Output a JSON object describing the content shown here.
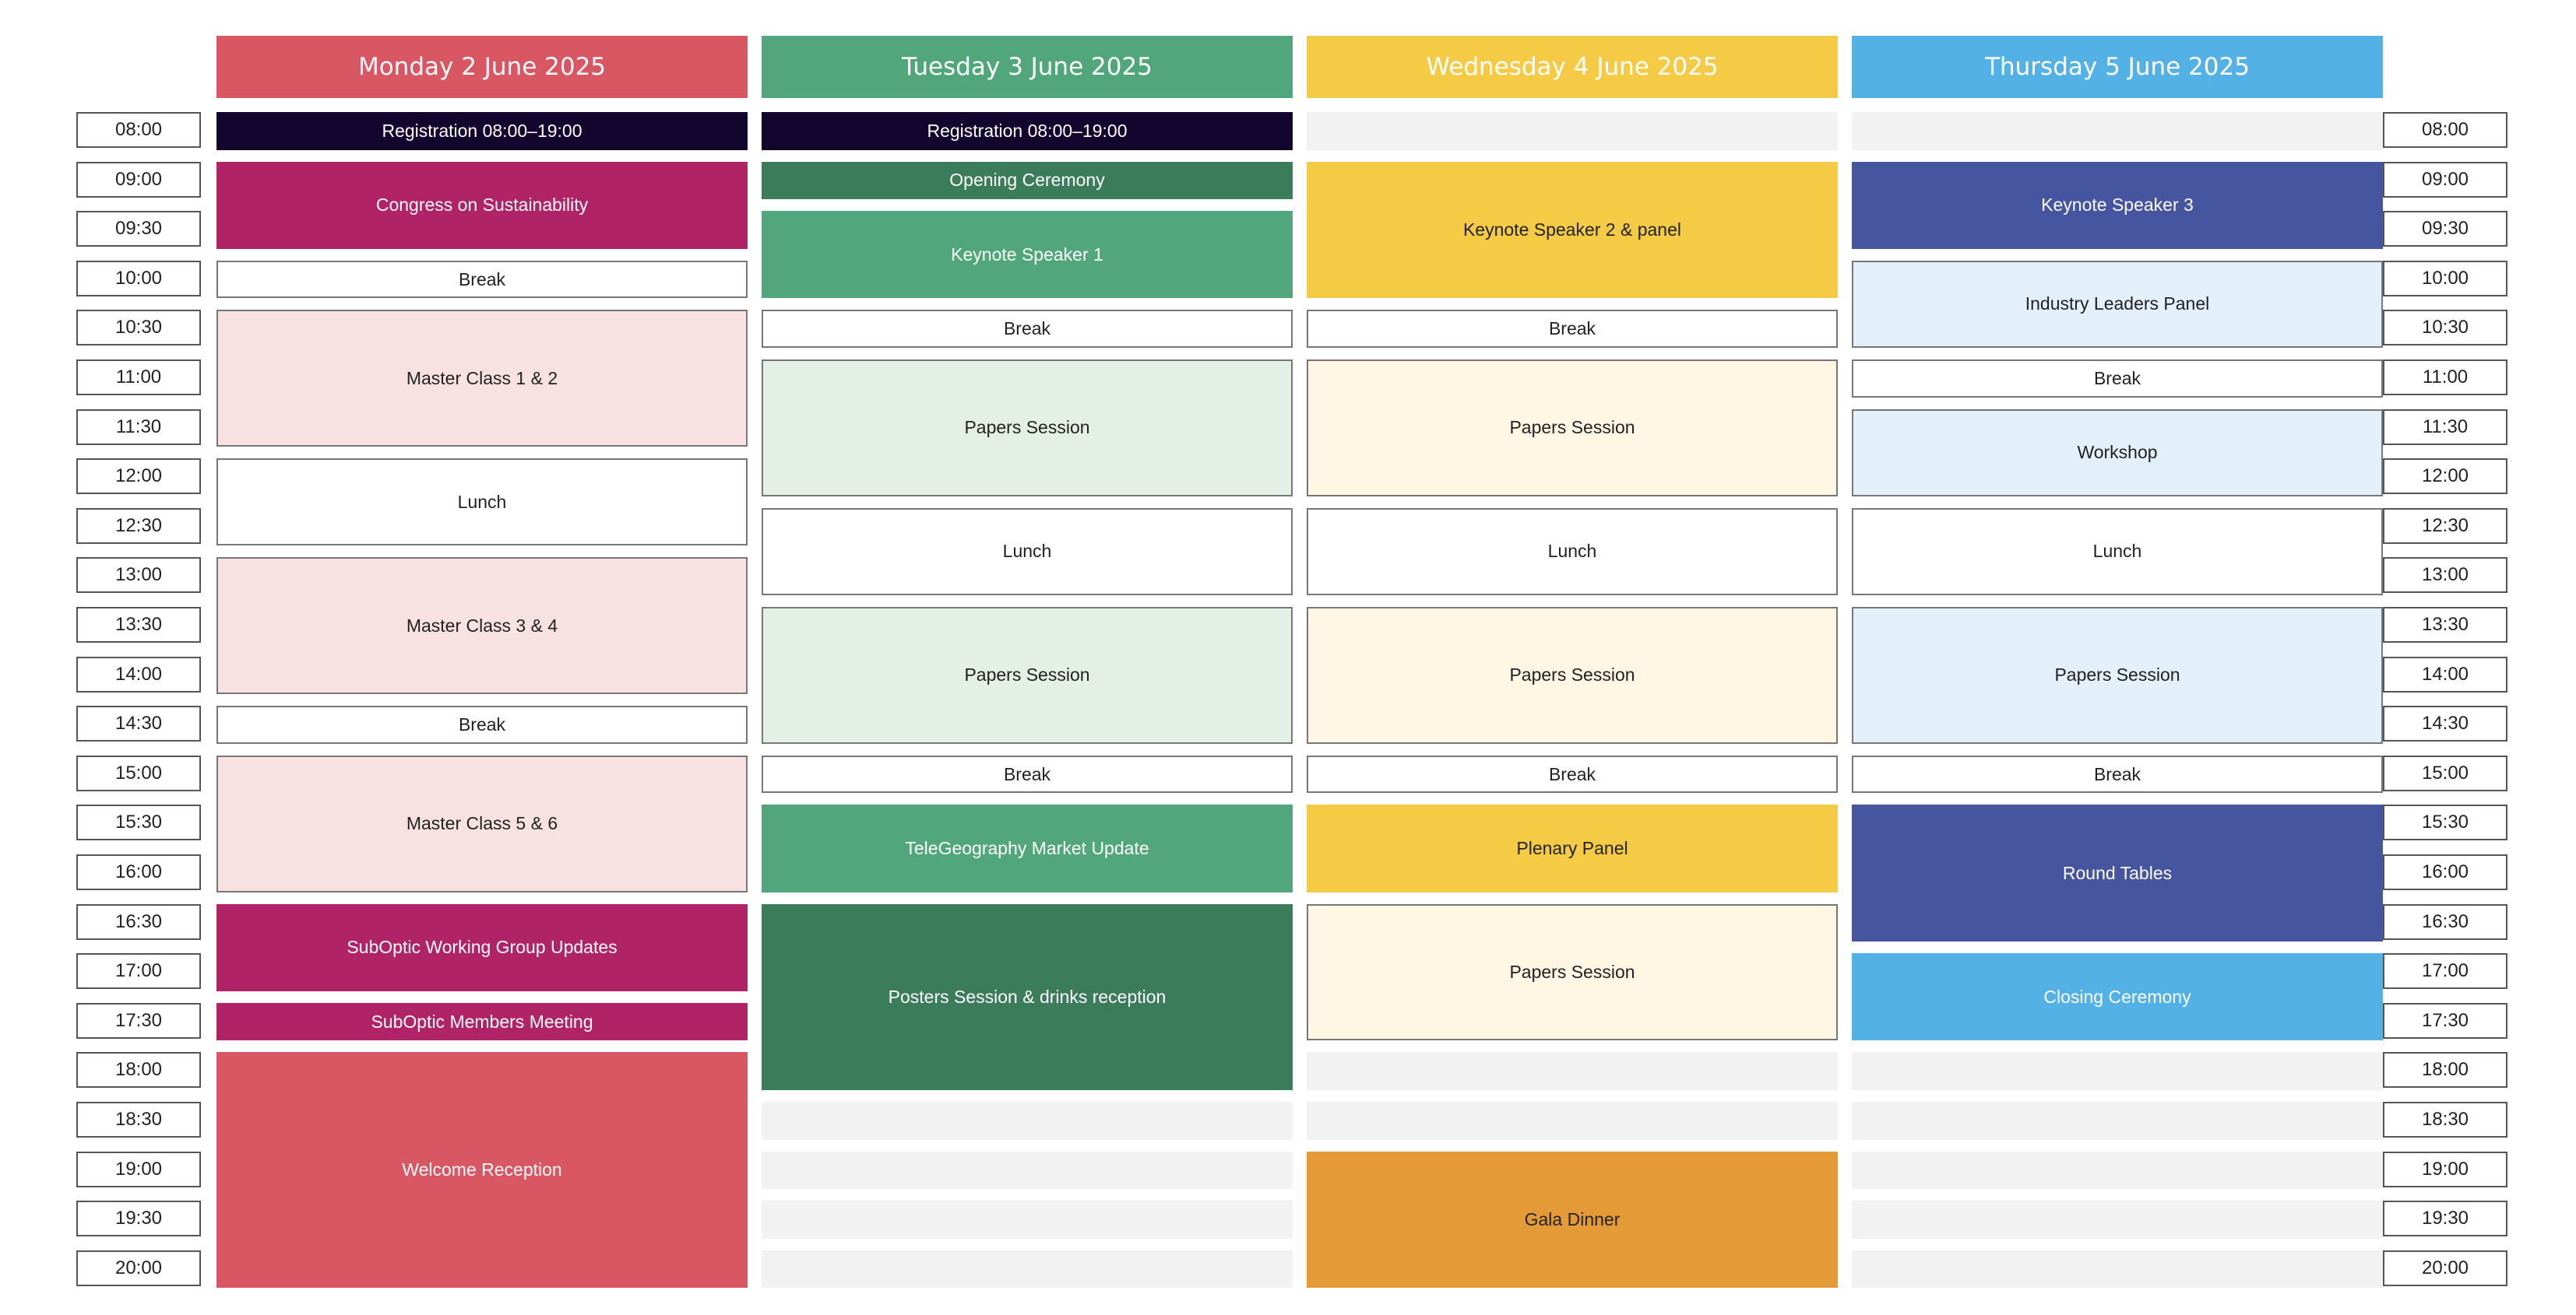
{
  "times": [
    "08:00",
    "09:00",
    "09:30",
    "10:00",
    "10:30",
    "11:00",
    "11:30",
    "12:00",
    "12:30",
    "13:00",
    "13:30",
    "14:00",
    "14:30",
    "15:00",
    "15:30",
    "16:00",
    "16:30",
    "17:00",
    "17:30",
    "18:00",
    "18:30",
    "19:00",
    "19:30",
    "20:00"
  ],
  "days": [
    {
      "title": "Monday 2 June 2025",
      "color": "#d95763"
    },
    {
      "title": "Tuesday 3 June 2025",
      "color": "#51a77b"
    },
    {
      "title": "Wednesday 4 June 2025",
      "color": "#f5cb46"
    },
    {
      "title": "Thursday 5 June 2025",
      "color": "#53b1e6"
    }
  ],
  "sessions": [
    {
      "day": 0,
      "start": 0,
      "end": 1,
      "label": "Registration 08:00–19:00",
      "bg": "#12052e",
      "fg": "#ffffff"
    },
    {
      "day": 0,
      "start": 1,
      "end": 3,
      "label": "Congress on Sustainability",
      "bg": "#b02467",
      "fg": "#ffffff"
    },
    {
      "day": 0,
      "start": 3,
      "end": 4,
      "label": "Break",
      "bg": "#ffffff",
      "fg": "#222222",
      "border": true
    },
    {
      "day": 0,
      "start": 4,
      "end": 7,
      "label": "Master Class 1 & 2",
      "bg": "#f8e1e1",
      "fg": "#222222",
      "border": true
    },
    {
      "day": 0,
      "start": 7,
      "end": 9,
      "label": "Lunch",
      "bg": "#ffffff",
      "fg": "#222222",
      "border": true
    },
    {
      "day": 0,
      "start": 9,
      "end": 12,
      "label": "Master Class 3 & 4",
      "bg": "#f8e1e1",
      "fg": "#222222",
      "border": true
    },
    {
      "day": 0,
      "start": 12,
      "end": 13,
      "label": "Break",
      "bg": "#ffffff",
      "fg": "#222222",
      "border": true
    },
    {
      "day": 0,
      "start": 13,
      "end": 16,
      "label": "Master Class 5 & 6",
      "bg": "#f8e1e1",
      "fg": "#222222",
      "border": true
    },
    {
      "day": 0,
      "start": 16,
      "end": 18,
      "label": "SubOptic Working Group Updates",
      "bg": "#b02467",
      "fg": "#ffffff"
    },
    {
      "day": 0,
      "start": 18,
      "end": 19,
      "label": "SubOptic Members Meeting",
      "bg": "#b02467",
      "fg": "#ffffff"
    },
    {
      "day": 0,
      "start": 19,
      "end": 24,
      "label": "Welcome Reception",
      "bg": "#d95763",
      "fg": "#ffffff"
    },
    {
      "day": 1,
      "start": 0,
      "end": 1,
      "label": "Registration 08:00–19:00",
      "bg": "#12052e",
      "fg": "#ffffff"
    },
    {
      "day": 1,
      "start": 1,
      "end": 2,
      "label": "Opening Ceremony",
      "bg": "#3b7d5b",
      "fg": "#ffffff"
    },
    {
      "day": 1,
      "start": 2,
      "end": 4,
      "label": "Keynote Speaker 1",
      "bg": "#51a77b",
      "fg": "#ffffff"
    },
    {
      "day": 1,
      "start": 4,
      "end": 5,
      "label": "Break",
      "bg": "#ffffff",
      "fg": "#222222",
      "border": true
    },
    {
      "day": 1,
      "start": 5,
      "end": 8,
      "label": "Papers Session",
      "bg": "#e4efe6",
      "fg": "#222222",
      "border": true
    },
    {
      "day": 1,
      "start": 8,
      "end": 10,
      "label": "Lunch",
      "bg": "#ffffff",
      "fg": "#222222",
      "border": true
    },
    {
      "day": 1,
      "start": 10,
      "end": 13,
      "label": "Papers Session",
      "bg": "#e4efe6",
      "fg": "#222222",
      "border": true
    },
    {
      "day": 1,
      "start": 13,
      "end": 14,
      "label": "Break",
      "bg": "#ffffff",
      "fg": "#222222",
      "border": true
    },
    {
      "day": 1,
      "start": 14,
      "end": 16,
      "label": "TeleGeography Market Update",
      "bg": "#51a77b",
      "fg": "#ffffff"
    },
    {
      "day": 1,
      "start": 16,
      "end": 20,
      "label": "Posters Session & drinks reception",
      "bg": "#3b7d5b",
      "fg": "#ffffff"
    },
    {
      "day": 2,
      "start": 1,
      "end": 4,
      "label": "Keynote Speaker 2 & panel",
      "bg": "#f5cb46",
      "fg": "#222222"
    },
    {
      "day": 2,
      "start": 4,
      "end": 5,
      "label": "Break",
      "bg": "#ffffff",
      "fg": "#222222",
      "border": true
    },
    {
      "day": 2,
      "start": 5,
      "end": 8,
      "label": "Papers Session",
      "bg": "#fff6e3",
      "fg": "#222222",
      "border": true
    },
    {
      "day": 2,
      "start": 8,
      "end": 10,
      "label": "Lunch",
      "bg": "#ffffff",
      "fg": "#222222",
      "border": true
    },
    {
      "day": 2,
      "start": 10,
      "end": 13,
      "label": "Papers Session",
      "bg": "#fff6e3",
      "fg": "#222222",
      "border": true
    },
    {
      "day": 2,
      "start": 13,
      "end": 14,
      "label": "Break",
      "bg": "#ffffff",
      "fg": "#222222",
      "border": true
    },
    {
      "day": 2,
      "start": 14,
      "end": 16,
      "label": "Plenary Panel",
      "bg": "#f5cb46",
      "fg": "#222222"
    },
    {
      "day": 2,
      "start": 16,
      "end": 19,
      "label": "Papers Session",
      "bg": "#fff6e3",
      "fg": "#222222",
      "border": true
    },
    {
      "day": 2,
      "start": 21,
      "end": 24,
      "label": "Gala Dinner",
      "bg": "#e59a38",
      "fg": "#222222"
    },
    {
      "day": 3,
      "start": 1,
      "end": 3,
      "label": "Keynote Speaker 3",
      "bg": "#4555a0",
      "fg": "#ffffff"
    },
    {
      "day": 3,
      "start": 3,
      "end": 5,
      "label": "Industry Leaders Panel",
      "bg": "#e3eff9",
      "fg": "#222222",
      "border": true
    },
    {
      "day": 3,
      "start": 5,
      "end": 6,
      "label": "Break",
      "bg": "#ffffff",
      "fg": "#222222",
      "border": true
    },
    {
      "day": 3,
      "start": 6,
      "end": 8,
      "label": "Workshop",
      "bg": "#e3eff9",
      "fg": "#222222",
      "border": true
    },
    {
      "day": 3,
      "start": 8,
      "end": 10,
      "label": "Lunch",
      "bg": "#ffffff",
      "fg": "#222222",
      "border": true
    },
    {
      "day": 3,
      "start": 10,
      "end": 13,
      "label": "Papers Session",
      "bg": "#e3eff9",
      "fg": "#222222",
      "border": true
    },
    {
      "day": 3,
      "start": 13,
      "end": 14,
      "label": "Break",
      "bg": "#ffffff",
      "fg": "#222222",
      "border": true
    },
    {
      "day": 3,
      "start": 14,
      "end": 17,
      "label": "Round Tables",
      "bg": "#4555a0",
      "fg": "#ffffff"
    },
    {
      "day": 3,
      "start": 17,
      "end": 19,
      "label": "Closing Ceremony",
      "bg": "#53b1e6",
      "fg": "#ffffff"
    }
  ],
  "empty_slots": [
    {
      "day": 2,
      "start": 0,
      "end": 1
    },
    {
      "day": 2,
      "start": 19,
      "end": 20
    },
    {
      "day": 2,
      "start": 20,
      "end": 21
    },
    {
      "day": 3,
      "start": 0,
      "end": 1
    },
    {
      "day": 3,
      "start": 19,
      "end": 20
    },
    {
      "day": 3,
      "start": 20,
      "end": 21
    },
    {
      "day": 3,
      "start": 21,
      "end": 22
    },
    {
      "day": 3,
      "start": 22,
      "end": 23
    },
    {
      "day": 3,
      "start": 23,
      "end": 24
    },
    {
      "day": 1,
      "start": 20,
      "end": 21
    },
    {
      "day": 1,
      "start": 21,
      "end": 22
    },
    {
      "day": 1,
      "start": 22,
      "end": 23
    },
    {
      "day": 1,
      "start": 23,
      "end": 24
    }
  ]
}
